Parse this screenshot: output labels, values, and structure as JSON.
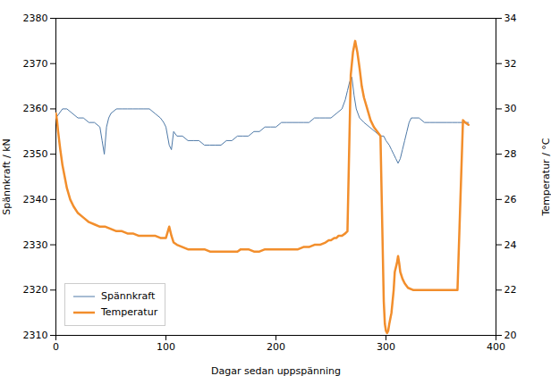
{
  "chart_data": {
    "type": "line",
    "xlabel": "Dagar sedan uppspänning",
    "ylabel": "Spännkraft / kN",
    "y2label": "Temperatur / °C",
    "xlim": [
      0,
      400
    ],
    "xticks": [
      0,
      100,
      200,
      300,
      400
    ],
    "ylim": [
      2310,
      2380
    ],
    "yticks": [
      2310,
      2320,
      2330,
      2340,
      2350,
      2360,
      2370,
      2380
    ],
    "y2lim": [
      20,
      34
    ],
    "y2ticks": [
      20,
      22,
      24,
      26,
      28,
      30,
      32,
      34
    ],
    "legend": "lower left",
    "series": [
      {
        "name": "Spännkraft",
        "x": [
          0,
          3,
          6,
          10,
          15,
          20,
          25,
          30,
          35,
          40,
          42,
          44,
          46,
          48,
          50,
          55,
          60,
          65,
          70,
          75,
          80,
          85,
          90,
          95,
          98,
          100,
          103,
          105,
          107,
          110,
          115,
          120,
          125,
          130,
          135,
          140,
          145,
          150,
          155,
          160,
          165,
          170,
          175,
          180,
          185,
          190,
          195,
          200,
          205,
          210,
          215,
          220,
          225,
          230,
          235,
          240,
          245,
          250,
          255,
          260,
          263,
          265,
          267,
          269,
          271,
          273,
          276,
          280,
          285,
          290,
          295,
          298,
          300,
          303,
          305,
          307,
          309,
          311,
          313,
          315,
          317,
          319,
          321,
          323,
          325,
          330,
          335,
          340,
          345,
          350,
          355,
          360,
          365,
          370,
          375
        ],
        "values": [
          2358,
          2359,
          2360,
          2360,
          2359,
          2358,
          2358,
          2357,
          2357,
          2356,
          2353,
          2350,
          2356,
          2358,
          2359,
          2360,
          2360,
          2360,
          2360,
          2360,
          2360,
          2360,
          2359,
          2358,
          2357,
          2356,
          2352,
          2351,
          2355,
          2354,
          2354,
          2353,
          2353,
          2353,
          2352,
          2352,
          2352,
          2352,
          2353,
          2353,
          2354,
          2354,
          2354,
          2355,
          2355,
          2356,
          2356,
          2356,
          2357,
          2357,
          2357,
          2357,
          2357,
          2357,
          2358,
          2358,
          2358,
          2358,
          2359,
          2360,
          2362,
          2364,
          2366,
          2367,
          2363,
          2360,
          2358,
          2357,
          2356,
          2355,
          2354,
          2354,
          2353,
          2352,
          2351,
          2350,
          2349,
          2348,
          2349,
          2351,
          2353,
          2355,
          2357,
          2358,
          2358,
          2358,
          2357,
          2357,
          2357,
          2357,
          2357,
          2357,
          2357,
          2357,
          2357
        ]
      },
      {
        "name": "Temperatur",
        "axis": "y2",
        "x": [
          0,
          1,
          2,
          4,
          6,
          8,
          10,
          13,
          16,
          20,
          25,
          30,
          35,
          40,
          45,
          50,
          55,
          60,
          65,
          70,
          75,
          80,
          85,
          90,
          95,
          100,
          103,
          105,
          107,
          110,
          115,
          120,
          125,
          130,
          135,
          140,
          145,
          150,
          155,
          160,
          165,
          168,
          170,
          175,
          180,
          185,
          190,
          195,
          200,
          205,
          210,
          215,
          220,
          225,
          230,
          235,
          240,
          245,
          248,
          250,
          253,
          255,
          257,
          260,
          263,
          265,
          268,
          270,
          272,
          274,
          276,
          278,
          280,
          283,
          286,
          289,
          292,
          295,
          298,
          299,
          300,
          301,
          302,
          303,
          305,
          307,
          308,
          310,
          311,
          312,
          313,
          315,
          317,
          320,
          325,
          330,
          335,
          340,
          345,
          350,
          355,
          360,
          365,
          370,
          372,
          375
        ],
        "values": [
          29.8,
          29.5,
          29.0,
          28.2,
          27.5,
          27.0,
          26.5,
          26.0,
          25.7,
          25.4,
          25.2,
          25.0,
          24.9,
          24.8,
          24.8,
          24.7,
          24.6,
          24.6,
          24.5,
          24.5,
          24.4,
          24.4,
          24.4,
          24.4,
          24.3,
          24.3,
          24.8,
          24.4,
          24.1,
          24.0,
          23.9,
          23.8,
          23.8,
          23.8,
          23.8,
          23.7,
          23.7,
          23.7,
          23.7,
          23.7,
          23.7,
          23.8,
          23.8,
          23.8,
          23.7,
          23.7,
          23.8,
          23.8,
          23.8,
          23.8,
          23.8,
          23.8,
          23.8,
          23.9,
          23.9,
          24.0,
          24.0,
          24.1,
          24.2,
          24.2,
          24.3,
          24.3,
          24.4,
          24.4,
          24.5,
          24.6,
          31.5,
          32.5,
          33.0,
          32.5,
          31.8,
          31.0,
          30.5,
          30.0,
          29.5,
          29.2,
          29.0,
          28.8,
          21.5,
          20.5,
          20.2,
          20.1,
          20.2,
          20.5,
          21.0,
          22.0,
          22.8,
          23.2,
          23.5,
          23.2,
          22.8,
          22.5,
          22.3,
          22.1,
          22.0,
          22.0,
          22.0,
          22.0,
          22.0,
          22.0,
          22.0,
          22.0,
          22.0,
          29.5,
          29.4,
          29.3
        ]
      }
    ]
  }
}
